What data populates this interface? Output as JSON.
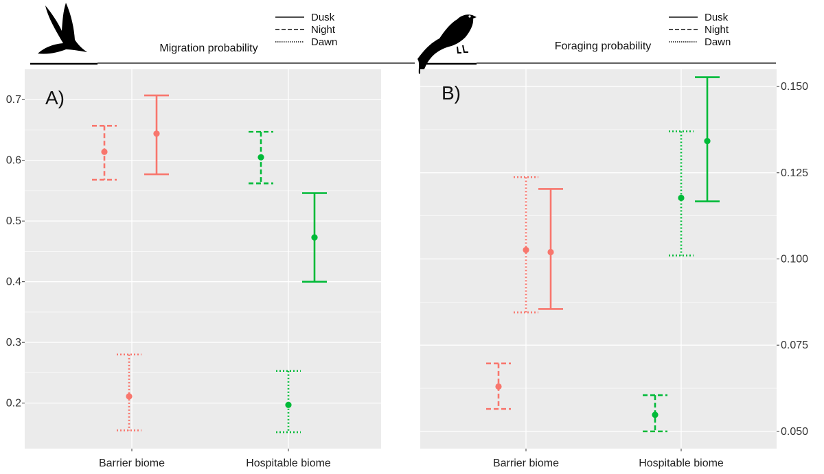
{
  "chart_data": [
    {
      "type": "errorbar",
      "panel_label": "A)",
      "title": "Migration probability",
      "categories": [
        "Barrier biome",
        "Hospitable biome"
      ],
      "ylim": [
        0.125,
        0.75
      ],
      "yticks": [
        0.2,
        0.3,
        0.4,
        0.5,
        0.6,
        0.7
      ],
      "ytick_labels": [
        "0.2",
        "0.3",
        "0.4",
        "0.5",
        "0.6",
        "0.7"
      ],
      "y_axis_side": "left",
      "legend": [
        "Dusk",
        "Night",
        "Dawn"
      ],
      "series": [
        {
          "name": "Barrier biome - Dawn",
          "category": "Barrier biome",
          "period": "Dawn",
          "color": "#f8766d",
          "line": "dotted",
          "estimate": 0.211,
          "lower": 0.155,
          "upper": 0.28
        },
        {
          "name": "Barrier biome - Night",
          "category": "Barrier biome",
          "period": "Night",
          "color": "#f8766d",
          "line": "dashed",
          "estimate": 0.614,
          "lower": 0.568,
          "upper": 0.657
        },
        {
          "name": "Barrier biome - Dusk",
          "category": "Barrier biome",
          "period": "Dusk",
          "color": "#f8766d",
          "line": "solid",
          "estimate": 0.644,
          "lower": 0.577,
          "upper": 0.707
        },
        {
          "name": "Hospitable biome - Dawn",
          "category": "Hospitable biome",
          "period": "Dawn",
          "color": "#00ba38",
          "line": "dotted",
          "estimate": 0.197,
          "lower": 0.152,
          "upper": 0.253
        },
        {
          "name": "Hospitable biome - Night",
          "category": "Hospitable biome",
          "period": "Night",
          "color": "#00ba38",
          "line": "dashed",
          "estimate": 0.605,
          "lower": 0.562,
          "upper": 0.647
        },
        {
          "name": "Hospitable biome - Dusk",
          "category": "Hospitable biome",
          "period": "Dusk",
          "color": "#00ba38",
          "line": "solid",
          "estimate": 0.473,
          "lower": 0.4,
          "upper": 0.546
        }
      ]
    },
    {
      "type": "errorbar",
      "panel_label": "B)",
      "title": "Foraging probability",
      "categories": [
        "Barrier biome",
        "Hospitable biome"
      ],
      "ylim": [
        0.045,
        0.155
      ],
      "yticks": [
        0.05,
        0.075,
        0.1,
        0.125,
        0.15
      ],
      "ytick_labels": [
        "0.050",
        "0.075",
        "0.100",
        "0.125",
        "0.150"
      ],
      "y_axis_side": "right",
      "legend": [
        "Dusk",
        "Night",
        "Dawn"
      ],
      "series": [
        {
          "name": "Barrier biome - Night",
          "category": "Barrier biome",
          "period": "Night",
          "color": "#f8766d",
          "line": "dashed",
          "estimate": 0.063,
          "lower": 0.0565,
          "upper": 0.0697
        },
        {
          "name": "Barrier biome - Dawn",
          "category": "Barrier biome",
          "period": "Dawn",
          "color": "#f8766d",
          "line": "dotted",
          "estimate": 0.1026,
          "lower": 0.0845,
          "upper": 0.1237
        },
        {
          "name": "Barrier biome - Dusk",
          "category": "Barrier biome",
          "period": "Dusk",
          "color": "#f8766d",
          "line": "solid",
          "estimate": 0.102,
          "lower": 0.0855,
          "upper": 0.1203
        },
        {
          "name": "Hospitable biome - Night",
          "category": "Hospitable biome",
          "period": "Night",
          "color": "#00ba38",
          "line": "dashed",
          "estimate": 0.0548,
          "lower": 0.05,
          "upper": 0.0605
        },
        {
          "name": "Hospitable biome - Dawn",
          "category": "Hospitable biome",
          "period": "Dawn",
          "color": "#00ba38",
          "line": "dotted",
          "estimate": 0.1177,
          "lower": 0.101,
          "upper": 0.137
        },
        {
          "name": "Hospitable biome - Dusk",
          "category": "Hospitable biome",
          "period": "Dusk",
          "color": "#00ba38",
          "line": "solid",
          "estimate": 0.1342,
          "lower": 0.1167,
          "upper": 0.1527
        }
      ]
    }
  ],
  "icons": {
    "left": "bird-in-flight-silhouette-icon",
    "right": "perched-bird-silhouette-icon"
  },
  "colors": {
    "barrier": "#f8766d",
    "hospitable": "#00ba38",
    "panel_background": "#ebebeb",
    "gridline": "#ffffff"
  }
}
